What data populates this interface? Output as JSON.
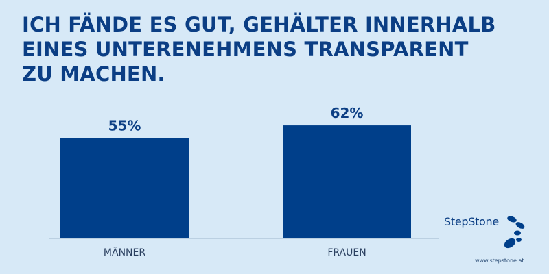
{
  "title_lines": [
    "ICH FÄNDE ES GUT, GEHÄLTER INNERHALB",
    "EINES UNTERENEHMENS TRANSPARENT",
    "ZU MACHEN."
  ],
  "colors": {
    "background": "#d7e9f7",
    "bar": "#003f8a",
    "title": "#0b3e84",
    "axis": "#8fa7bd"
  },
  "chart_data": {
    "type": "bar",
    "categories": [
      "MÄNNER",
      "FRAUEN"
    ],
    "values": [
      55,
      62
    ],
    "value_labels": [
      "55%",
      "62%"
    ],
    "ylim": [
      0,
      100
    ],
    "grid": false,
    "legend": "none"
  },
  "brand": {
    "logo_text": "StepStone",
    "logo_icon": "footsteps-icon",
    "url": "www.stepstone.at"
  }
}
